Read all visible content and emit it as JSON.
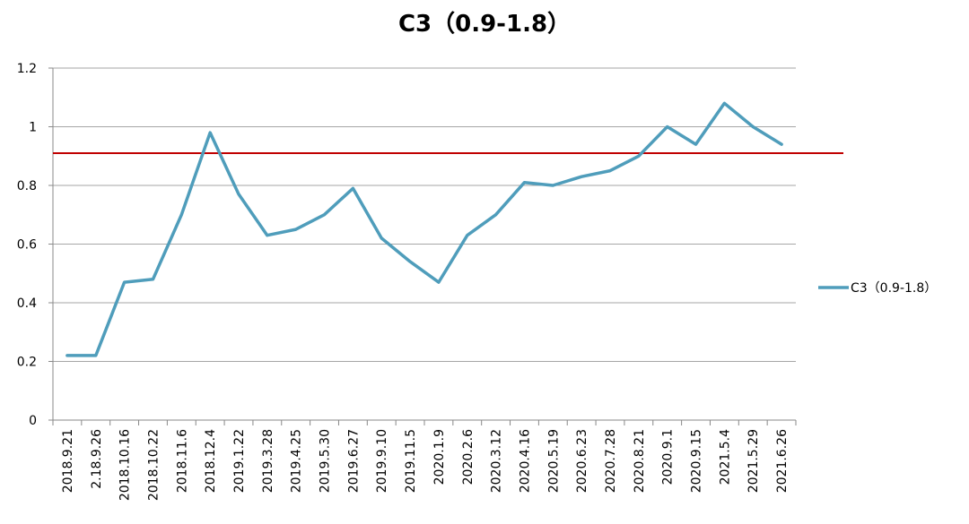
{
  "chart_data": {
    "type": "line",
    "title": "C3（0.9-1.8）",
    "xlabel": "",
    "ylabel": "",
    "ylim": [
      0,
      1.2
    ],
    "yticks": [
      "0",
      "0.2",
      "0.4",
      "0.6",
      "0.8",
      "1",
      "1.2"
    ],
    "categories": [
      "2018.9.21",
      "2.18.9.26",
      "2018.10.16",
      "2018.10.22",
      "2018.11.6",
      "2018.12.4",
      "2019.1.22",
      "2019.3.28",
      "2019.4.25",
      "2019.5.30",
      "2019.6.27",
      "2019.9.10",
      "2019.11.5",
      "2020.1.9",
      "2020.2.6",
      "2020.3.12",
      "2020.4.16",
      "2020.5.19",
      "2020.6.23",
      "2020.7.28",
      "2020.8.21",
      "2020.9.1",
      "2020.9.15",
      "2021.5.4",
      "2021.5.29",
      "2021.6.26"
    ],
    "series": [
      {
        "name": "C3（0.9-1.8）",
        "color": "#4f9dbb",
        "values": [
          0.22,
          0.22,
          0.47,
          0.48,
          0.7,
          0.98,
          0.77,
          0.63,
          0.65,
          0.7,
          0.79,
          0.62,
          0.54,
          0.47,
          0.63,
          0.7,
          0.81,
          0.8,
          0.83,
          0.85,
          0.9,
          1.0,
          0.94,
          1.08,
          1.0,
          0.94
        ]
      }
    ],
    "reference_line": {
      "value": 0.91,
      "color": "#c00000"
    },
    "grid": true,
    "legend_position": "right"
  }
}
